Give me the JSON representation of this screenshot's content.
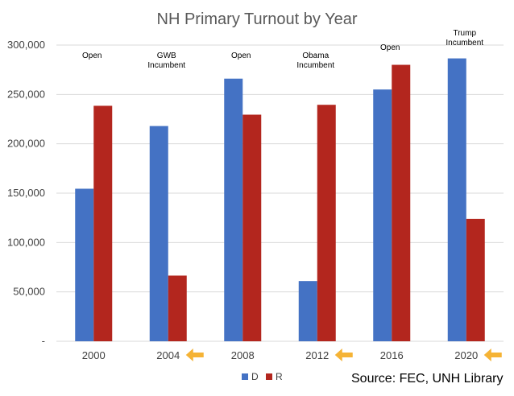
{
  "chart_data": {
    "type": "bar",
    "title": "NH Primary Turnout by Year",
    "categories": [
      "2000",
      "2004",
      "2008",
      "2012",
      "2016",
      "2020"
    ],
    "series": [
      {
        "name": "D",
        "color": "#4472C4",
        "values": [
          154500,
          218000,
          266000,
          61000,
          255000,
          286500
        ]
      },
      {
        "name": "R",
        "color": "#B3261E",
        "values": [
          238500,
          66500,
          229500,
          239500,
          280000,
          124000
        ]
      }
    ],
    "ylim": [
      0,
      300000
    ],
    "yticks": [
      0,
      50000,
      100000,
      150000,
      200000,
      250000,
      300000
    ],
    "ytick_labels": [
      "-",
      "50,000",
      "100,000",
      "150,000",
      "200,000",
      "250,000",
      "300,000"
    ],
    "gridlines": true,
    "legend_placement": "bottom",
    "annotations": [
      {
        "category": "2000",
        "lines": [
          "Open"
        ]
      },
      {
        "category": "2004",
        "lines": [
          "GWB",
          "Incumbent"
        ]
      },
      {
        "category": "2008",
        "lines": [
          "Open"
        ]
      },
      {
        "category": "2012",
        "lines": [
          "Obama",
          "Incumbent"
        ]
      },
      {
        "category": "2016",
        "lines": [
          "Open"
        ]
      },
      {
        "category": "2020",
        "lines": [
          "Trump",
          "Incumbent"
        ]
      }
    ],
    "arrow_categories": [
      "2004",
      "2012",
      "2020"
    ],
    "arrow_color": "#F5B335",
    "source": "Source: FEC, UNH Library"
  }
}
